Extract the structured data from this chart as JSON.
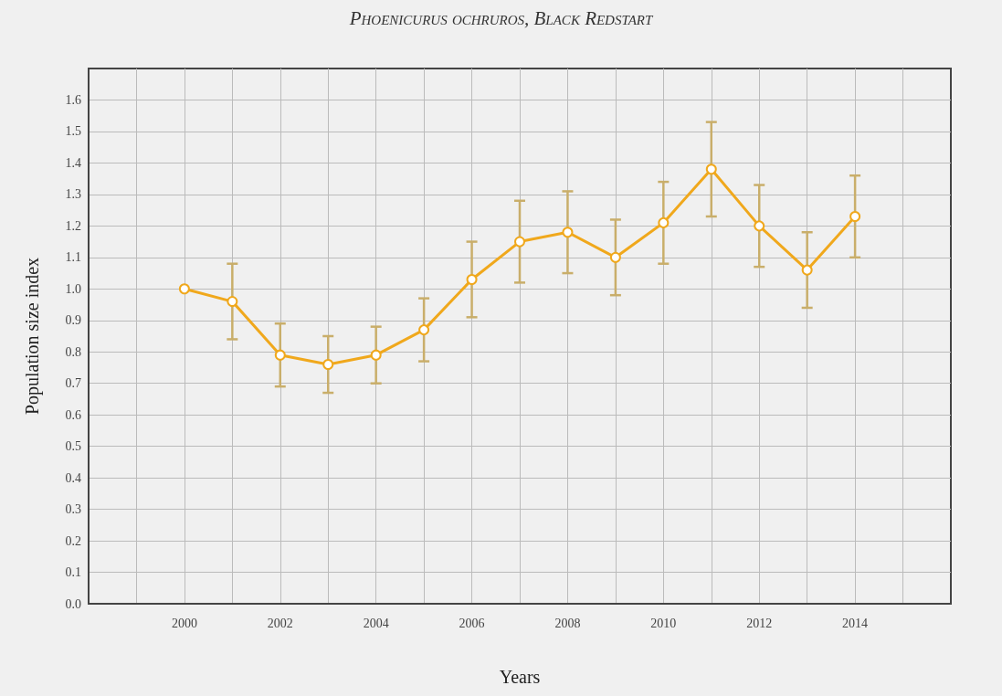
{
  "chart_data": {
    "type": "line",
    "title": "Phoenicurus ochruros, Black Redstart",
    "xlabel": "Years",
    "ylabel": "Population size index",
    "x": [
      2000,
      2001,
      2002,
      2003,
      2004,
      2005,
      2006,
      2007,
      2008,
      2009,
      2010,
      2011,
      2012,
      2013,
      2014
    ],
    "series": [
      {
        "color": "#f0a81c",
        "values": [
          1.0,
          0.96,
          0.79,
          0.76,
          0.79,
          0.87,
          1.03,
          1.15,
          1.18,
          1.1,
          1.21,
          1.38,
          1.2,
          1.06,
          1.23
        ],
        "errors": [
          null,
          [
            0.84,
            1.08
          ],
          [
            0.69,
            0.89
          ],
          [
            0.67,
            0.85
          ],
          [
            0.7,
            0.88
          ],
          [
            0.77,
            0.97
          ],
          [
            0.91,
            1.15
          ],
          [
            1.02,
            1.28
          ],
          [
            1.05,
            1.31
          ],
          [
            0.98,
            1.22
          ],
          [
            1.08,
            1.34
          ],
          [
            1.23,
            1.53
          ],
          [
            1.07,
            1.33
          ],
          [
            0.94,
            1.18
          ],
          [
            1.1,
            1.36
          ]
        ]
      }
    ],
    "xlim": [
      1998,
      2016
    ],
    "xticks": [
      {
        "value": 1999,
        "label": null
      },
      2000,
      {
        "value": 2001,
        "label": null
      },
      2002,
      {
        "value": 2003,
        "label": null
      },
      2004,
      {
        "value": 2005,
        "label": null
      },
      2006,
      {
        "value": 2007,
        "label": null
      },
      2008,
      {
        "value": 2009,
        "label": null
      },
      2010,
      {
        "value": 2011,
        "label": null
      },
      2012,
      {
        "value": 2013,
        "label": null
      },
      2014,
      {
        "value": 2015,
        "label": null
      }
    ],
    "ylim": [
      0,
      1.7
    ],
    "yticks": [
      {
        "value": 0,
        "label": "0.0"
      },
      0.1,
      0.2,
      0.3,
      0.4,
      0.5,
      0.6,
      0.7,
      0.8,
      0.9,
      {
        "value": 1,
        "label": "1.0"
      },
      1.1,
      1.2,
      1.3,
      1.4,
      1.5,
      1.6
    ],
    "grid": true,
    "marker": "circle",
    "line_style": "solid"
  }
}
